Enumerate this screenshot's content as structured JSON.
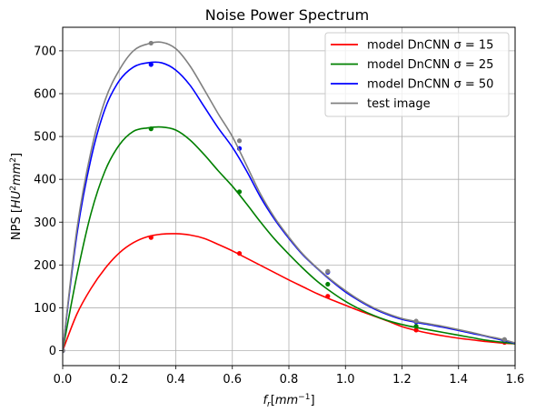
{
  "chart_data": {
    "type": "line",
    "title": "Noise Power Spectrum",
    "xlabel": "f_r[mm^-1]",
    "ylabel": "NPS [HU^2mm^2]",
    "xlim": [
      0.0,
      1.6
    ],
    "ylim": [
      -35,
      755
    ],
    "xticks": [
      "0.0",
      "0.2",
      "0.4",
      "0.6",
      "0.8",
      "1.0",
      "1.2",
      "1.4",
      "1.6"
    ],
    "yticks": [
      "0",
      "100",
      "200",
      "300",
      "400",
      "500",
      "600",
      "700"
    ],
    "grid": true,
    "legend_position": "top-right",
    "series": [
      {
        "name": "model DnCNN σ =  15",
        "color": "#ff0000",
        "x": [
          0.0,
          0.05,
          0.1,
          0.15,
          0.2,
          0.25,
          0.3,
          0.35,
          0.4,
          0.45,
          0.5,
          0.55,
          0.6,
          0.65,
          0.7,
          0.75,
          0.8,
          0.85,
          0.9,
          0.95,
          1.0,
          1.05,
          1.1,
          1.15,
          1.2,
          1.25,
          1.3,
          1.35,
          1.4,
          1.45,
          1.5,
          1.55,
          1.6
        ],
        "y": [
          0,
          85,
          145,
          192,
          228,
          252,
          266,
          272,
          273,
          270,
          262,
          248,
          233,
          216,
          199,
          182,
          165,
          149,
          133,
          119,
          106,
          93,
          81,
          69,
          56,
          47,
          40,
          34,
          29,
          25,
          21,
          18,
          16
        ],
        "markers_x": [
          0.0,
          0.3125,
          0.625,
          0.9375,
          1.25,
          1.5625
        ],
        "markers_y": [
          0,
          264,
          227,
          127,
          48,
          19
        ]
      },
      {
        "name": "model DnCNN σ =  25",
        "color": "#008000",
        "x": [
          0.0,
          0.05,
          0.1,
          0.15,
          0.2,
          0.25,
          0.3,
          0.35,
          0.4,
          0.45,
          0.5,
          0.55,
          0.6,
          0.65,
          0.7,
          0.75,
          0.8,
          0.85,
          0.9,
          0.95,
          1.0,
          1.05,
          1.1,
          1.15,
          1.2,
          1.25,
          1.3,
          1.35,
          1.4,
          1.45,
          1.5,
          1.55,
          1.6
        ],
        "y": [
          0,
          175,
          320,
          420,
          480,
          512,
          520,
          522,
          515,
          492,
          458,
          420,
          384,
          343,
          300,
          260,
          225,
          192,
          162,
          137,
          115,
          97,
          82,
          70,
          61,
          54,
          48,
          42,
          36,
          30,
          24,
          20,
          16
        ],
        "markers_x": [
          0.0,
          0.3125,
          0.625,
          0.9375,
          1.25,
          1.5625
        ],
        "markers_y": [
          0,
          518,
          371,
          155,
          57,
          22
        ]
      },
      {
        "name": "model DnCNN σ =  50",
        "color": "#0000ff",
        "x": [
          0.0,
          0.05,
          0.1,
          0.15,
          0.2,
          0.25,
          0.3,
          0.35,
          0.4,
          0.45,
          0.5,
          0.55,
          0.6,
          0.65,
          0.7,
          0.75,
          0.8,
          0.85,
          0.9,
          0.95,
          1.0,
          1.05,
          1.1,
          1.15,
          1.2,
          1.25,
          1.3,
          1.35,
          1.4,
          1.45,
          1.5,
          1.55,
          1.6
        ],
        "y": [
          0,
          270,
          448,
          565,
          630,
          662,
          672,
          672,
          655,
          620,
          570,
          520,
          475,
          420,
          358,
          306,
          262,
          223,
          192,
          163,
          137,
          116,
          98,
          84,
          73,
          66,
          60,
          54,
          47,
          40,
          33,
          25,
          17
        ],
        "markers_x": [
          0.0,
          0.3125,
          0.625,
          0.9375,
          1.25,
          1.5625
        ],
        "markers_y": [
          0,
          668,
          472,
          183,
          67,
          25
        ]
      },
      {
        "name": "test image",
        "color": "#808080",
        "x": [
          0.0,
          0.05,
          0.1,
          0.15,
          0.2,
          0.25,
          0.3,
          0.35,
          0.4,
          0.45,
          0.5,
          0.55,
          0.6,
          0.65,
          0.7,
          0.75,
          0.8,
          0.85,
          0.9,
          0.95,
          1.0,
          1.05,
          1.1,
          1.15,
          1.2,
          1.25,
          1.3,
          1.35,
          1.4,
          1.45,
          1.5,
          1.55,
          1.6
        ],
        "y": [
          0,
          282,
          465,
          585,
          655,
          700,
          716,
          720,
          705,
          665,
          610,
          553,
          500,
          433,
          365,
          310,
          265,
          225,
          193,
          165,
          140,
          118,
          100,
          86,
          75,
          68,
          62,
          56,
          49,
          42,
          34,
          27,
          18
        ],
        "markers_x": [
          0.0,
          0.3125,
          0.625,
          0.9375,
          1.25,
          1.5625
        ],
        "markers_y": [
          0,
          718,
          490,
          185,
          69,
          26
        ]
      }
    ]
  }
}
